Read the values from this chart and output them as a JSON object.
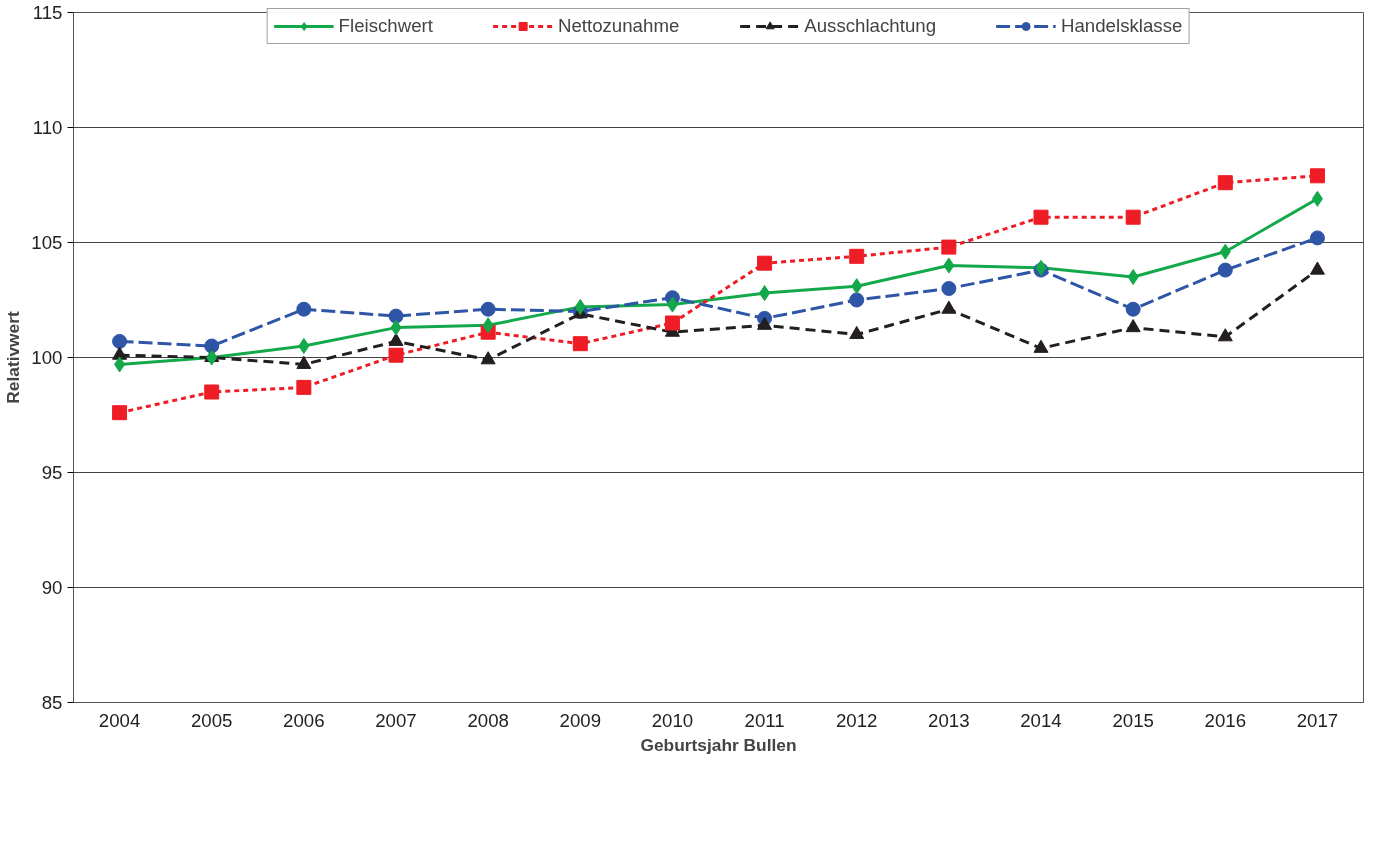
{
  "chart_data": {
    "type": "line",
    "xlabel": "Geburtsjahr Bullen",
    "ylabel": "Relativwert",
    "categories": [
      "2004",
      "2005",
      "2006",
      "2007",
      "2008",
      "2009",
      "2010",
      "2011",
      "2012",
      "2013",
      "2014",
      "2015",
      "2016",
      "2017"
    ],
    "ylim": [
      85,
      115
    ],
    "yticks": [
      85,
      90,
      95,
      100,
      105,
      110,
      115
    ],
    "grid": "y",
    "legend": "top",
    "series": [
      {
        "name": "Fleischwert",
        "color": "#13a84a",
        "marker": "diamond",
        "line_style": "solid",
        "values": [
          99.7,
          100.0,
          100.5,
          101.3,
          101.4,
          102.2,
          102.3,
          102.8,
          103.1,
          104.0,
          103.9,
          103.5,
          104.6,
          106.9
        ]
      },
      {
        "name": "Nettozunahme",
        "color": "#ee1c25",
        "marker": "square",
        "line_style": "dotted",
        "values": [
          97.6,
          98.5,
          98.7,
          100.1,
          101.1,
          100.6,
          101.5,
          104.1,
          104.4,
          104.8,
          106.1,
          106.1,
          107.6,
          107.9
        ]
      },
      {
        "name": "Ausschlachtung",
        "color": "#231f20",
        "marker": "triangle",
        "line_style": "dashed",
        "values": [
          100.1,
          100.0,
          99.7,
          100.7,
          99.9,
          101.9,
          101.1,
          101.4,
          101.0,
          102.1,
          100.4,
          101.3,
          100.9,
          103.8
        ]
      },
      {
        "name": "Handelsklasse",
        "color": "#2e55a6",
        "marker": "circle",
        "line_style": "longdash",
        "values": [
          100.7,
          100.5,
          102.1,
          101.8,
          102.1,
          102.0,
          102.6,
          101.7,
          102.5,
          103.0,
          103.8,
          102.1,
          103.8,
          105.2
        ]
      }
    ]
  }
}
